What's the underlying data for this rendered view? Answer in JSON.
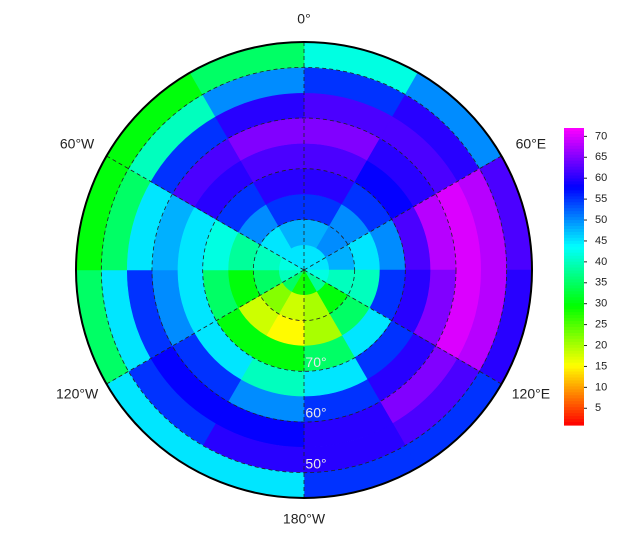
{
  "chart_data": {
    "type": "polar-heatmap",
    "lat_edges": [
      90,
      85,
      80,
      75,
      70,
      65,
      60,
      55,
      50,
      45
    ],
    "lon_edges": [
      0,
      30,
      60,
      90,
      120,
      150,
      180,
      210,
      240,
      270,
      300,
      330,
      360
    ],
    "values": [
      [
        45,
        45,
        45,
        42,
        38,
        30,
        28,
        35,
        40,
        42,
        45,
        45
      ],
      [
        48,
        50,
        48,
        40,
        30,
        20,
        18,
        22,
        35,
        40,
        45,
        48
      ],
      [
        55,
        50,
        45,
        40,
        35,
        20,
        15,
        18,
        30,
        38,
        50,
        55
      ],
      [
        60,
        55,
        50,
        55,
        45,
        35,
        30,
        30,
        35,
        42,
        55,
        60
      ],
      [
        62,
        58,
        62,
        60,
        55,
        45,
        40,
        45,
        45,
        45,
        60,
        62
      ],
      [
        65,
        60,
        68,
        65,
        60,
        55,
        50,
        55,
        50,
        48,
        62,
        65
      ],
      [
        62,
        62,
        70,
        70,
        65,
        60,
        58,
        58,
        55,
        45,
        55,
        60
      ],
      [
        55,
        60,
        68,
        68,
        62,
        60,
        60,
        55,
        45,
        35,
        40,
        50
      ],
      [
        42,
        50,
        62,
        60,
        55,
        55,
        45,
        45,
        35,
        30,
        30,
        35
      ]
    ],
    "lon_ticks": [
      {
        "value": 0,
        "label": "0°"
      },
      {
        "value": 60,
        "label": "60°E"
      },
      {
        "value": 120,
        "label": "120°E"
      },
      {
        "value": 180,
        "label": "180°W"
      },
      {
        "value": 240,
        "label": "120°W"
      },
      {
        "value": 300,
        "label": "60°W"
      }
    ],
    "lat_ticks": [
      {
        "value": 80,
        "label": null
      },
      {
        "value": 70,
        "label": "70°"
      },
      {
        "value": 60,
        "label": "60°"
      },
      {
        "value": 50,
        "label": "50°"
      }
    ],
    "clim": [
      1,
      72
    ],
    "cticks": [
      5,
      10,
      15,
      20,
      25,
      30,
      35,
      40,
      45,
      50,
      55,
      60,
      65,
      70
    ]
  }
}
